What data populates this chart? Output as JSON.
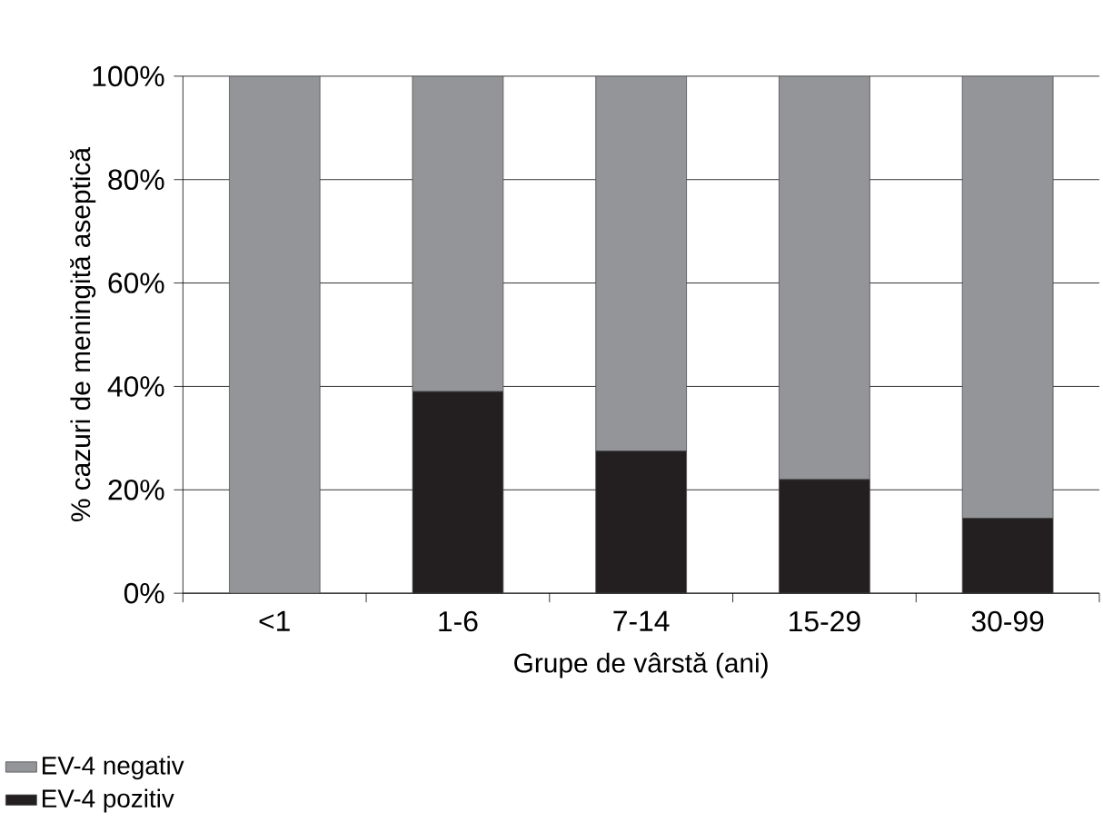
{
  "chart_data": {
    "type": "bar",
    "stacked": true,
    "xlabel": "Grupe de vârstă (ani)",
    "ylabel": "% cazuri de meningită aseptică",
    "categories": [
      "<1",
      "1-6",
      "7-14",
      "15-29",
      "30-99"
    ],
    "series": [
      {
        "name": "EV-4 pozitiv",
        "color": "#231f20",
        "values": [
          0,
          39,
          27.5,
          22,
          14.5
        ]
      },
      {
        "name": "EV-4 negativ",
        "color": "#939598",
        "values": [
          100,
          61,
          72.5,
          78,
          85.5
        ]
      }
    ],
    "ylim": [
      0,
      100
    ],
    "yticks": [
      {
        "value": 0,
        "label": "0%"
      },
      {
        "value": 20,
        "label": "20%"
      },
      {
        "value": 40,
        "label": "40%"
      },
      {
        "value": 60,
        "label": "60%"
      },
      {
        "value": 80,
        "label": "80%"
      },
      {
        "value": 100,
        "label": "100%"
      }
    ],
    "grid": "y",
    "legend": "bottom left"
  }
}
